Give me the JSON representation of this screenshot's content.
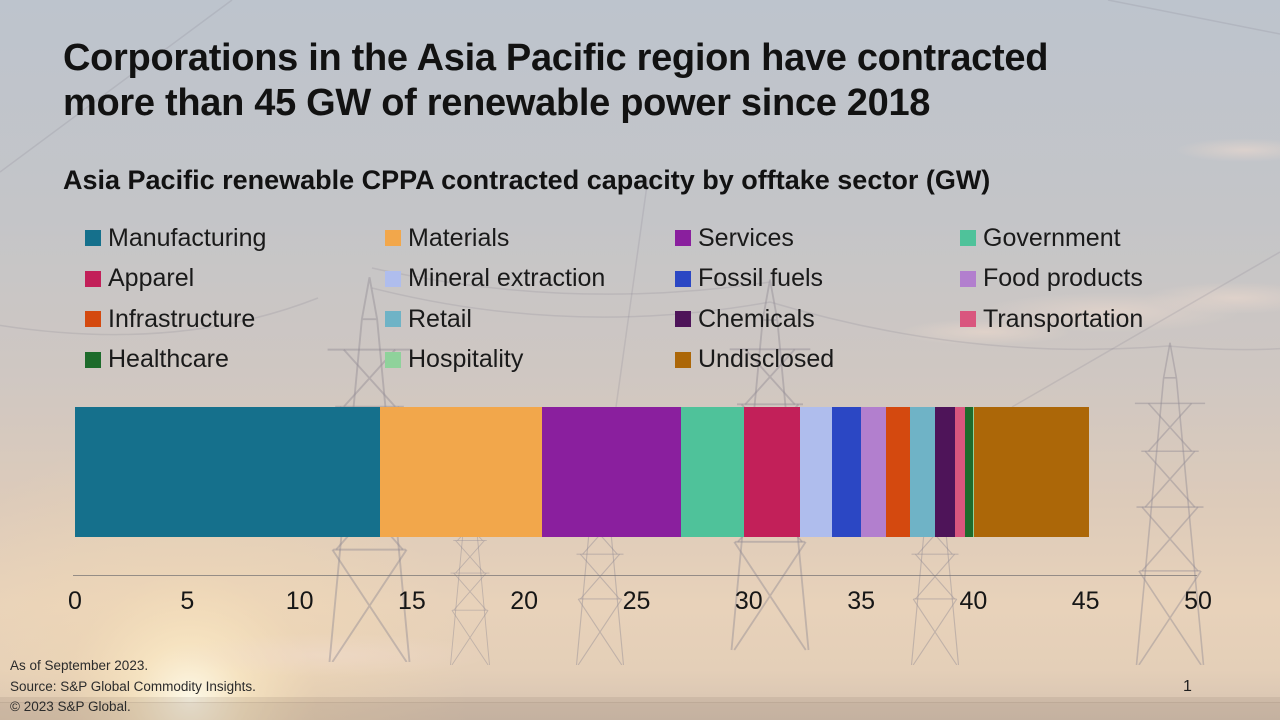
{
  "slide": {
    "title_lines": [
      "Corporations in the Asia Pacific region have contracted",
      "more than 45 GW of renewable power since 2018"
    ],
    "subtitle": "Asia Pacific renewable CPPA contracted capacity by offtake sector (GW)",
    "footnotes": [
      "As of September 2023.",
      "Source: S&P Global Commodity Insights.",
      "© 2023 S&P Global."
    ],
    "page_number": "1"
  },
  "chart_data": {
    "type": "bar",
    "subtype": "horizontal-stacked-single-bar",
    "title": "Asia Pacific renewable CPPA contracted capacity by offtake sector (GW)",
    "unit": "GW",
    "xlabel": "",
    "ylabel": "",
    "xlim": [
      0,
      50
    ],
    "x_ticks": [
      0,
      5,
      10,
      15,
      20,
      25,
      30,
      35,
      40,
      45,
      50
    ],
    "grid": false,
    "legend_position": "top",
    "series": [
      {
        "name": "Manufacturing",
        "value": 13.6,
        "color": "#15708C"
      },
      {
        "name": "Materials",
        "value": 7.2,
        "color": "#F2A74B"
      },
      {
        "name": "Services",
        "value": 6.2,
        "color": "#8A1F9E"
      },
      {
        "name": "Government",
        "value": 2.8,
        "color": "#4FC29A"
      },
      {
        "name": "Apparel",
        "value": 2.5,
        "color": "#C22059"
      },
      {
        "name": "Mineral extraction",
        "value": 1.4,
        "color": "#AFBDED"
      },
      {
        "name": "Fossil fuels",
        "value": 1.3,
        "color": "#2B47C4"
      },
      {
        "name": "Food products",
        "value": 1.1,
        "color": "#B27FCE"
      },
      {
        "name": "Infrastructure",
        "value": 1.1,
        "color": "#D4490F"
      },
      {
        "name": "Retail",
        "value": 1.1,
        "color": "#6FB3C6"
      },
      {
        "name": "Chemicals",
        "value": 0.9,
        "color": "#4E1459"
      },
      {
        "name": "Transportation",
        "value": 0.45,
        "color": "#D9567E"
      },
      {
        "name": "Healthcare",
        "value": 0.35,
        "color": "#1D6B2B"
      },
      {
        "name": "Hospitality",
        "value": 0.05,
        "color": "#8FD29B"
      },
      {
        "name": "Undisclosed",
        "value": 5.1,
        "color": "#AC6708"
      }
    ]
  }
}
